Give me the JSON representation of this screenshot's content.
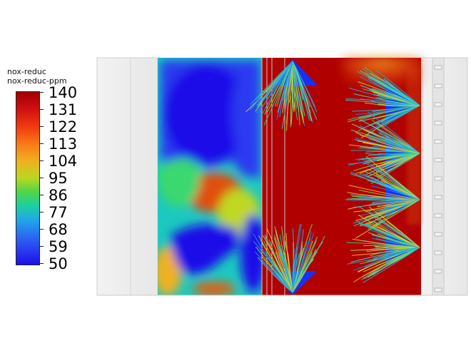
{
  "legend": {
    "title": "nox-reduc",
    "subtitle": "nox-reduc-ppm",
    "ticks": [
      "140",
      "131",
      "122",
      "113",
      "104",
      "95",
      "86",
      "77",
      "68",
      "59",
      "50"
    ]
  },
  "colors": {
    "max": "#a00000",
    "high": "#f03a10",
    "mid": "#b8d820",
    "low": "#20a8e6",
    "min": "#1a10e8",
    "wall": "#efefef"
  }
}
